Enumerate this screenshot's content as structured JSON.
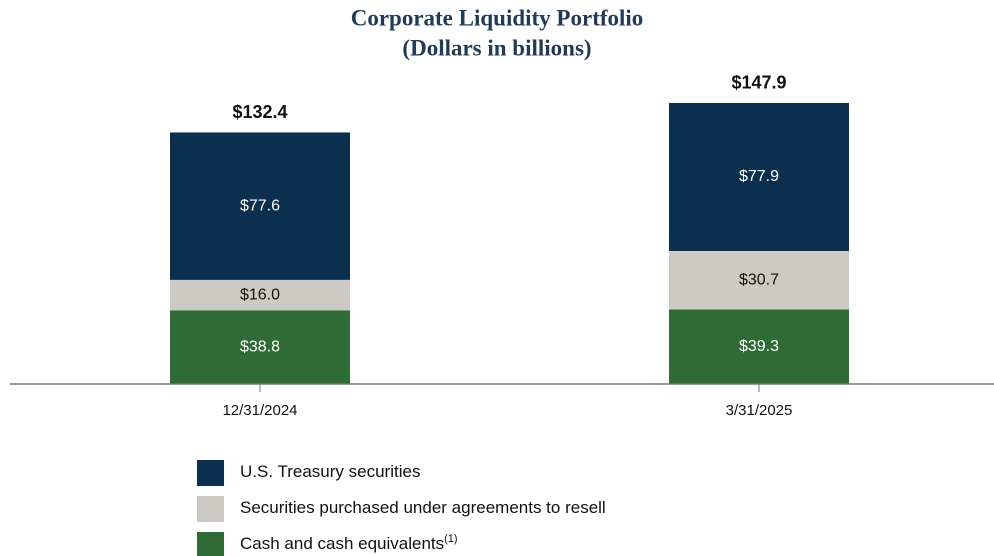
{
  "chart_data": {
    "type": "stacked_bar",
    "title": "Corporate Liquidity Portfolio",
    "subtitle": "(Dollars in billions)",
    "categories": [
      "12/31/2024",
      "3/31/2025"
    ],
    "series": [
      {
        "name": "U.S. Treasury securities",
        "color": "#0b2f4e",
        "values": [
          77.6,
          77.9
        ],
        "value_labels": [
          "$77.6",
          "$77.9"
        ]
      },
      {
        "name": "Securities purchased under agreements to resell",
        "color": "#cdc9c3",
        "values": [
          16.0,
          30.7
        ],
        "value_labels": [
          "$16.0",
          "$30.7"
        ]
      },
      {
        "name": "Cash and cash equivalents",
        "name_superscript": "(1)",
        "color": "#2e6b35",
        "values": [
          38.8,
          39.3
        ],
        "value_labels": [
          "$38.8",
          "$39.3"
        ]
      }
    ],
    "totals": [
      132.4,
      147.9
    ],
    "total_labels": [
      "$132.4",
      "$147.9"
    ]
  }
}
